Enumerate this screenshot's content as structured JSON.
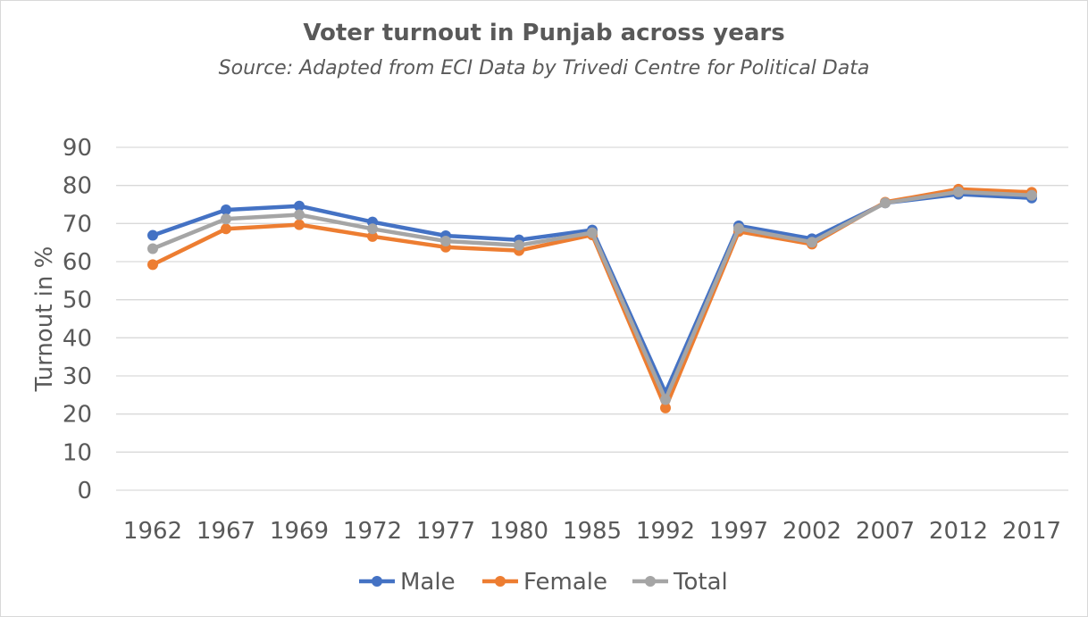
{
  "chart_data": {
    "type": "line",
    "title": "Voter turnout in Punjab across years",
    "subtitle": "Source: Adapted from ECI Data by Trivedi Centre for Political Data",
    "xlabel": "",
    "ylabel": "Turnout in %",
    "ylim": [
      0,
      90
    ],
    "yticks": [
      0,
      10,
      20,
      30,
      40,
      50,
      60,
      70,
      80,
      90
    ],
    "grid": true,
    "legend_position": "bottom",
    "categories": [
      "1962",
      "1967",
      "1969",
      "1972",
      "1977",
      "1980",
      "1985",
      "1992",
      "1997",
      "2002",
      "2007",
      "2012",
      "2017"
    ],
    "series": [
      {
        "name": "Male",
        "color": "#4472C4",
        "values": [
          66.9,
          73.6,
          74.6,
          70.4,
          66.8,
          65.7,
          68.3,
          25.6,
          69.4,
          66.0,
          75.4,
          77.7,
          76.7
        ]
      },
      {
        "name": "Female",
        "color": "#ED7D31",
        "values": [
          59.2,
          68.6,
          69.7,
          66.6,
          63.8,
          62.9,
          67.0,
          21.6,
          67.9,
          64.6,
          75.6,
          79.0,
          78.2
        ]
      },
      {
        "name": "Total",
        "color": "#A5A5A5",
        "values": [
          63.4,
          71.2,
          72.3,
          68.6,
          65.4,
          64.3,
          67.6,
          23.8,
          68.7,
          65.1,
          75.4,
          78.3,
          77.4
        ]
      }
    ]
  }
}
